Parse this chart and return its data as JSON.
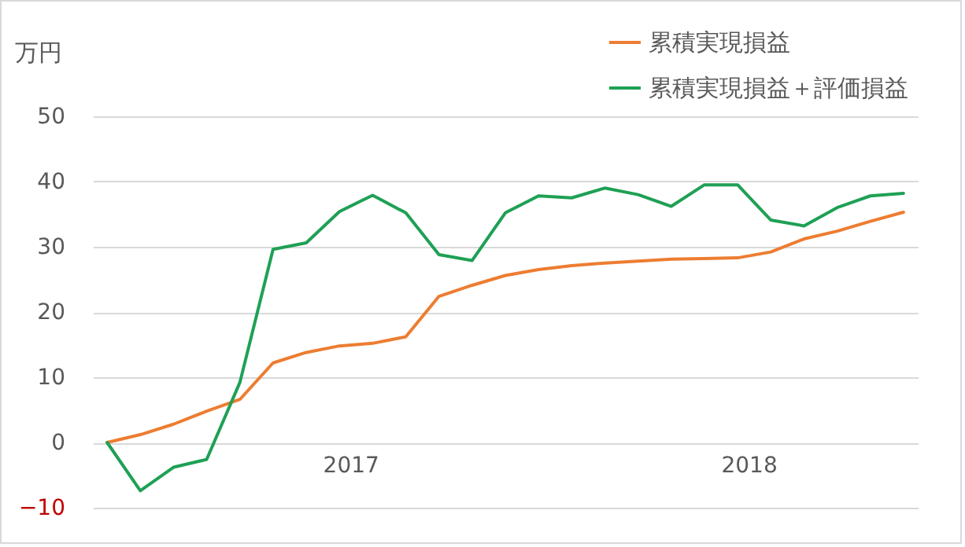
{
  "chart_data": {
    "type": "line",
    "ylabel": "万円",
    "categories": [
      null,
      null,
      null,
      null,
      null,
      null,
      null,
      "2017",
      null,
      null,
      null,
      null,
      null,
      null,
      null,
      null,
      null,
      null,
      null,
      "2018",
      null,
      null,
      null,
      null,
      null
    ],
    "series": [
      {
        "name": "累積実現損益",
        "color": "#ed7d31",
        "values": [
          0,
          1.2,
          2.8,
          4.8,
          6.6,
          12.2,
          13.8,
          14.8,
          15.2,
          16.2,
          22.4,
          24.1,
          25.6,
          26.5,
          27.1,
          27.5,
          27.8,
          28.1,
          28.2,
          28.3,
          29.2,
          31.2,
          32.4,
          33.9,
          35.3
        ]
      },
      {
        "name": "累積実現損益＋評価損益",
        "color": "#1fa055",
        "values": [
          0,
          -7.4,
          -3.8,
          -2.6,
          9.2,
          29.6,
          30.6,
          35.4,
          37.9,
          35.2,
          28.8,
          27.9,
          35.2,
          37.8,
          37.5,
          39,
          38,
          36.2,
          39.5,
          39.5,
          34.1,
          33.2,
          36,
          37.8,
          38.2
        ]
      }
    ],
    "ylim": [
      -10,
      50
    ],
    "yticks": [
      -10,
      0,
      10,
      20,
      30,
      40,
      50
    ],
    "grid": "y",
    "legend": "top right"
  }
}
